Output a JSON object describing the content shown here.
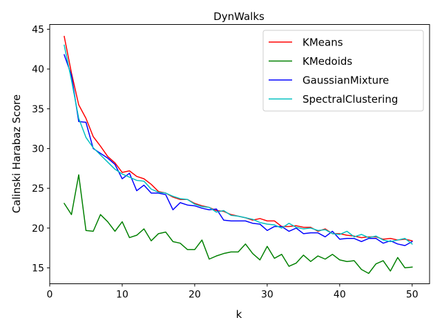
{
  "chart_data": {
    "type": "line",
    "title": "DynWalks",
    "xlabel": "k",
    "ylabel": "Calinski Harabaz Score",
    "xlim": [
      0,
      52.4
    ],
    "ylim": [
      13,
      45.6
    ],
    "xticks": [
      0,
      10,
      20,
      30,
      40,
      50
    ],
    "yticks": [
      15,
      20,
      25,
      30,
      35,
      40,
      45
    ],
    "grid": false,
    "legend_position": "top-right",
    "x": [
      2,
      3,
      4,
      5,
      6,
      7,
      8,
      9,
      10,
      11,
      12,
      13,
      14,
      15,
      16,
      17,
      18,
      19,
      20,
      21,
      22,
      23,
      24,
      25,
      26,
      27,
      28,
      29,
      30,
      31,
      32,
      33,
      34,
      35,
      36,
      37,
      38,
      39,
      40,
      41,
      42,
      43,
      44,
      45,
      46,
      47,
      48,
      49,
      50
    ],
    "series": [
      {
        "name": "KMeans",
        "color": "#ff0000",
        "values": [
          44.1,
          39.5,
          35.5,
          33.8,
          31.5,
          30.3,
          29.0,
          28.2,
          27.0,
          27.2,
          26.5,
          26.2,
          25.5,
          24.6,
          24.4,
          23.9,
          23.6,
          23.6,
          23.1,
          22.8,
          22.6,
          22.2,
          22.1,
          21.7,
          21.5,
          21.3,
          21.0,
          21.2,
          20.9,
          20.9,
          20.2,
          20.2,
          20.3,
          20.1,
          20.1,
          19.6,
          19.9,
          19.3,
          19.3,
          19.1,
          19.0,
          18.8,
          18.9,
          18.9,
          18.6,
          18.7,
          18.5,
          18.6,
          18.4
        ]
      },
      {
        "name": "KMedoids",
        "color": "#008000",
        "values": [
          23.1,
          21.7,
          26.7,
          19.7,
          19.6,
          21.7,
          20.8,
          19.6,
          20.8,
          18.8,
          19.1,
          19.9,
          18.4,
          19.3,
          19.5,
          18.3,
          18.1,
          17.3,
          17.3,
          18.5,
          16.1,
          16.5,
          16.8,
          17.0,
          17.0,
          18.0,
          16.8,
          16.0,
          17.7,
          16.2,
          16.7,
          15.2,
          15.6,
          16.6,
          15.8,
          16.5,
          16.1,
          16.7,
          16.0,
          15.8,
          15.9,
          14.8,
          14.3,
          15.5,
          15.9,
          14.6,
          16.3,
          15.0,
          15.1
        ]
      },
      {
        "name": "GaussianMixture",
        "color": "#0000ff",
        "values": [
          41.8,
          39.2,
          33.4,
          33.3,
          30.0,
          29.4,
          28.8,
          28.0,
          26.2,
          26.9,
          24.7,
          25.4,
          24.4,
          24.4,
          24.2,
          22.3,
          23.2,
          22.9,
          22.8,
          22.5,
          22.3,
          22.4,
          21.0,
          20.9,
          20.9,
          20.9,
          20.6,
          20.5,
          19.7,
          20.2,
          20.2,
          19.6,
          20.0,
          19.3,
          19.4,
          19.4,
          18.9,
          19.6,
          18.6,
          18.7,
          18.7,
          18.3,
          18.7,
          18.7,
          18.1,
          18.4,
          18.0,
          17.8,
          18.3
        ]
      },
      {
        "name": "SpectralClustering",
        "color": "#00bfbf",
        "values": [
          43.0,
          38.6,
          33.8,
          31.4,
          30.1,
          29.2,
          28.3,
          27.4,
          26.8,
          26.4,
          26.0,
          25.9,
          24.9,
          24.5,
          24.4,
          24.0,
          23.7,
          23.6,
          23.0,
          22.7,
          22.6,
          22.0,
          22.2,
          21.6,
          21.5,
          21.3,
          21.1,
          20.7,
          20.5,
          20.4,
          20.0,
          20.6,
          20.1,
          19.9,
          20.0,
          19.7,
          19.8,
          19.3,
          19.2,
          19.6,
          18.9,
          19.2,
          18.8,
          19.0,
          18.5,
          18.3,
          18.5,
          18.7,
          18.0
        ]
      }
    ]
  }
}
